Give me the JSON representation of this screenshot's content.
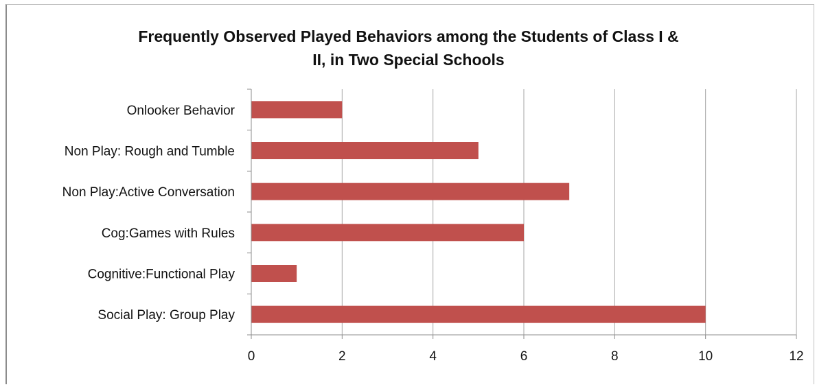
{
  "chart_data": {
    "type": "bar",
    "orientation": "horizontal",
    "title_lines": [
      "Frequently  Observed Played Behaviors among the Students of Class I &",
      "II,  in Two Special Schools"
    ],
    "categories": [
      "Onlooker Behavior",
      "Non Play: Rough and Tumble",
      "Non Play:Active Conversation",
      "Cog:Games with Rules",
      "Cognitive:Functional Play",
      "Social Play: Group Play"
    ],
    "values": [
      2,
      5,
      7,
      6,
      1,
      10
    ],
    "xlim": [
      0,
      12
    ],
    "xticks": [
      "0",
      "2",
      "4",
      "6",
      "8",
      "10",
      "12"
    ],
    "grid": true,
    "bar_color": "#c0504d",
    "gridline_color": "#a6a6a6"
  }
}
